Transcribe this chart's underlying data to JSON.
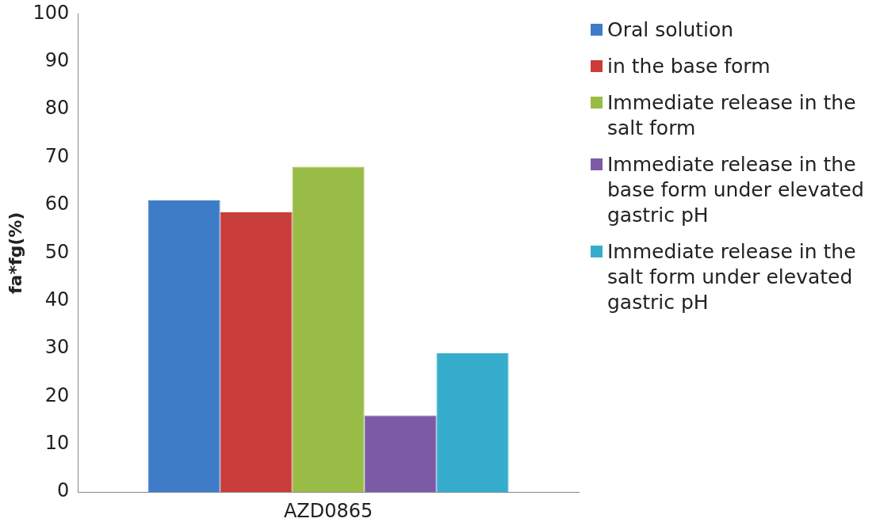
{
  "chart_data": {
    "type": "bar",
    "ylabel": "fa*fg(%)",
    "categories": [
      "AZD0865"
    ],
    "series": [
      {
        "name": "Oral solution",
        "color": "#3f7cc8",
        "values": [
          61
        ]
      },
      {
        "name": " in the base form",
        "color": "#c93d3b",
        "values": [
          58.5
        ]
      },
      {
        "name": "Immediate release in the salt form",
        "color": "#98bc46",
        "values": [
          68
        ]
      },
      {
        "name": "Immediate release in the base form under elevated gastric pH",
        "color": "#7b5aa6",
        "values": [
          16
        ]
      },
      {
        "name": "Immediate release in the salt form under elevated gastric pH",
        "color": "#36adcc",
        "values": [
          29
        ]
      }
    ],
    "ylim": [
      0,
      100
    ],
    "yticks": [
      0,
      10,
      20,
      30,
      40,
      50,
      60,
      70,
      80,
      90,
      100
    ],
    "grid": false,
    "legend": "right"
  }
}
